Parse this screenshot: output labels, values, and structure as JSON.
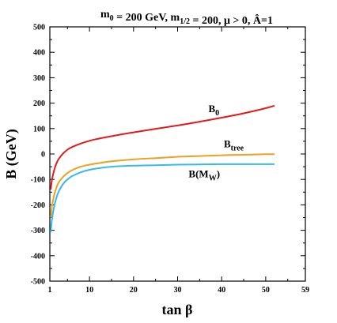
{
  "chart_data": {
    "type": "line",
    "title": "m₀ = 200 GeV, m₁/₂ = 200, μ > 0, Â=1",
    "title_parts": [
      {
        "text": "m",
        "sub": "0"
      },
      {
        "text": " = 200 GeV, m",
        "sub": "1/2"
      },
      {
        "text": " = 200, μ > 0, Â=1"
      }
    ],
    "xlabel": "tan β",
    "ylabel": "B (GeV)",
    "xlim": [
      1,
      59
    ],
    "ylim": [
      -500,
      500
    ],
    "xticks": [
      1,
      10,
      20,
      30,
      40,
      50,
      59
    ],
    "yticks": [
      500,
      400,
      300,
      200,
      100,
      0,
      -100,
      -200,
      -300,
      -400,
      -500
    ],
    "grid": false,
    "series": [
      {
        "name": "B0",
        "label_main": "B",
        "label_sub": "0",
        "color": "#e31a1c",
        "x": [
          1.2,
          1.5,
          2,
          2.5,
          3,
          4,
          5,
          6,
          8,
          10,
          12,
          15,
          20,
          25,
          30,
          35,
          40,
          45,
          50,
          52
        ],
        "y": [
          -140,
          -100,
          -62,
          -37,
          -20,
          2,
          17,
          27,
          41,
          52,
          60,
          70,
          85,
          99,
          112,
          127,
          143,
          160,
          180,
          190
        ]
      },
      {
        "name": "Btree",
        "label_main": "B",
        "label_sub": "tree",
        "color": "#f0a020",
        "x": [
          1.2,
          1.5,
          2,
          2.5,
          3,
          4,
          5,
          6,
          8,
          10,
          12,
          15,
          20,
          25,
          30,
          35,
          40,
          45,
          50,
          52
        ],
        "y": [
          -250,
          -205,
          -160,
          -132,
          -112,
          -90,
          -75,
          -64,
          -50,
          -42,
          -36,
          -29,
          -21,
          -16,
          -11,
          -8,
          -5,
          -3,
          -1,
          -1
        ]
      },
      {
        "name": "B(MW)",
        "label_main": "B(M",
        "label_sub": "W",
        "label_tail": ")",
        "color": "#33bbee",
        "x": [
          1.2,
          1.5,
          2,
          2.5,
          3,
          4,
          5,
          6,
          8,
          10,
          12,
          15,
          20,
          25,
          30,
          35,
          40,
          45,
          50,
          52
        ],
        "y": [
          -308,
          -255,
          -205,
          -172,
          -148,
          -118,
          -100,
          -88,
          -72,
          -62,
          -56,
          -50,
          -46,
          -44,
          -42,
          -41,
          -40,
          -40,
          -40,
          -40
        ]
      }
    ]
  }
}
